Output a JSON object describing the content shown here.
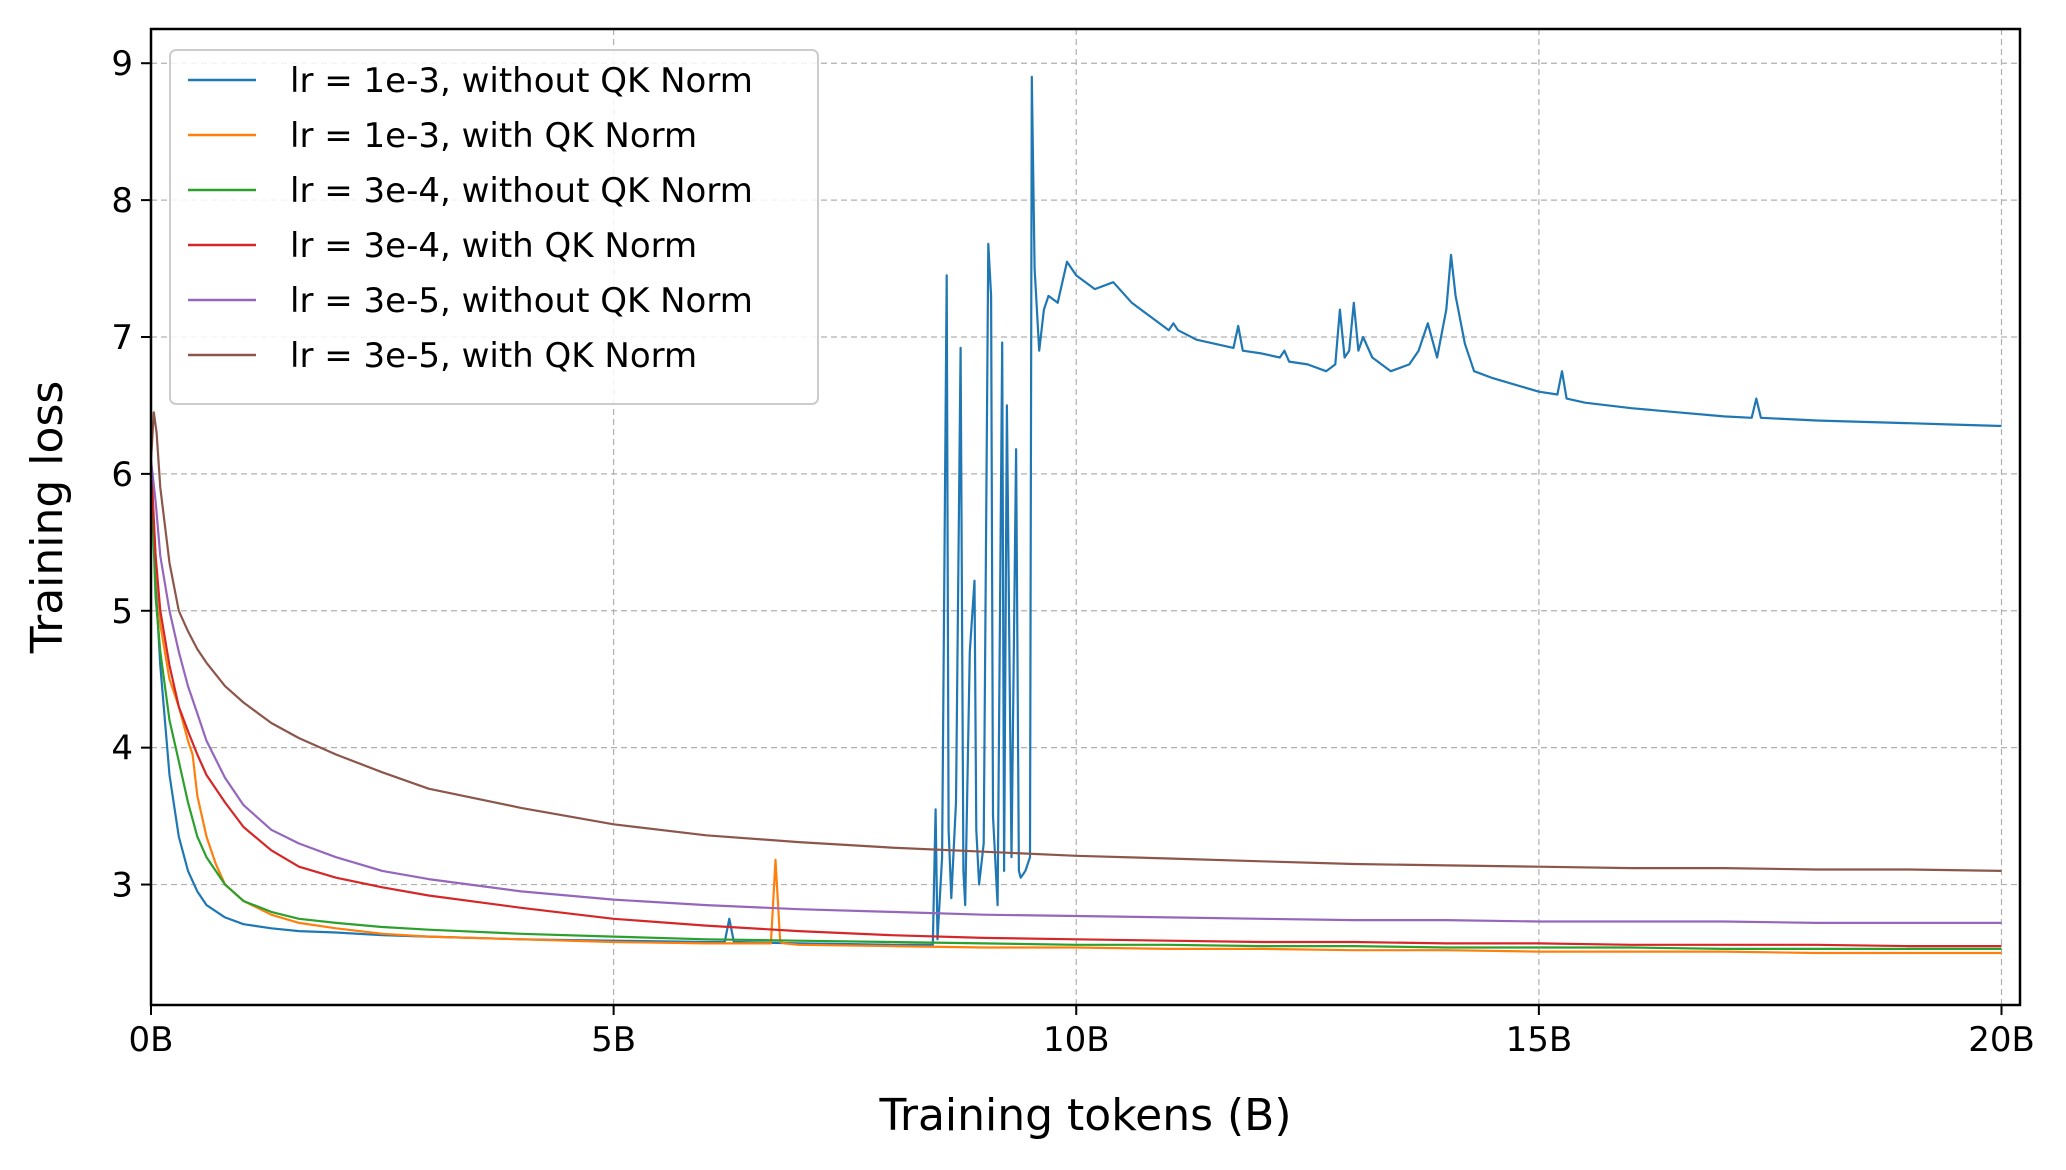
{
  "chart_data": {
    "type": "line",
    "xlabel": "Training tokens (B)",
    "ylabel": "Training loss",
    "xlim": [
      0,
      20.2
    ],
    "ylim": [
      2.12,
      9.25
    ],
    "grid": true,
    "legend_placement": "top-left",
    "x_ticks": [
      {
        "value": 0,
        "label": "0B"
      },
      {
        "value": 5,
        "label": "5B"
      },
      {
        "value": 10,
        "label": "10B"
      },
      {
        "value": 15,
        "label": "15B"
      },
      {
        "value": 20,
        "label": "20B"
      }
    ],
    "y_ticks": [
      {
        "value": 3,
        "label": "3"
      },
      {
        "value": 4,
        "label": "4"
      },
      {
        "value": 5,
        "label": "5"
      },
      {
        "value": 6,
        "label": "6"
      },
      {
        "value": 7,
        "label": "7"
      },
      {
        "value": 8,
        "label": "8"
      },
      {
        "value": 9,
        "label": "9"
      }
    ],
    "series": [
      {
        "name": "lr = 1e-3, without QK Norm",
        "color": "#1f77b4",
        "x": [
          0,
          0.05,
          0.1,
          0.2,
          0.3,
          0.4,
          0.5,
          0.6,
          0.8,
          1.0,
          1.3,
          1.6,
          2.0,
          2.5,
          3.0,
          4.0,
          5.0,
          6.0,
          6.2,
          6.25,
          6.3,
          7.0,
          8.0,
          8.45,
          8.48,
          8.5,
          8.55,
          8.6,
          8.62,
          8.65,
          8.7,
          8.75,
          8.78,
          8.8,
          8.85,
          8.9,
          8.92,
          8.95,
          9.0,
          9.05,
          9.08,
          9.1,
          9.15,
          9.2,
          9.22,
          9.25,
          9.3,
          9.35,
          9.38,
          9.4,
          9.45,
          9.5,
          9.52,
          9.55,
          9.6,
          9.65,
          9.7,
          9.8,
          9.9,
          10.0,
          10.2,
          10.4,
          10.6,
          10.8,
          11.0,
          11.05,
          11.1,
          11.3,
          11.5,
          11.7,
          11.75,
          11.8,
          12.0,
          12.2,
          12.25,
          12.3,
          12.5,
          12.7,
          12.8,
          12.85,
          12.9,
          12.95,
          13.0,
          13.05,
          13.1,
          13.2,
          13.4,
          13.6,
          13.7,
          13.8,
          13.9,
          14.0,
          14.05,
          14.1,
          14.2,
          14.3,
          14.5,
          15.0,
          15.2,
          15.25,
          15.3,
          15.5,
          16.0,
          16.5,
          17.0,
          17.3,
          17.35,
          17.4,
          18.0,
          18.5,
          19.0,
          19.5,
          20.0
        ],
        "y": [
          6.0,
          5.2,
          4.6,
          3.8,
          3.35,
          3.1,
          2.95,
          2.85,
          2.76,
          2.71,
          2.68,
          2.66,
          2.65,
          2.63,
          2.62,
          2.6,
          2.59,
          2.58,
          2.58,
          2.75,
          2.58,
          2.57,
          2.56,
          2.56,
          3.55,
          2.6,
          3.2,
          7.45,
          3.4,
          2.9,
          3.6,
          6.92,
          3.1,
          2.85,
          4.7,
          5.22,
          3.4,
          3.0,
          3.3,
          7.68,
          7.3,
          3.5,
          2.85,
          6.96,
          3.1,
          6.5,
          3.2,
          6.18,
          3.1,
          3.05,
          3.1,
          3.2,
          8.9,
          7.5,
          6.9,
          7.2,
          7.3,
          7.25,
          7.55,
          7.45,
          7.35,
          7.4,
          7.25,
          7.15,
          7.05,
          7.1,
          7.05,
          6.98,
          6.95,
          6.92,
          7.08,
          6.9,
          6.88,
          6.85,
          6.9,
          6.82,
          6.8,
          6.75,
          6.8,
          7.2,
          6.85,
          6.9,
          7.25,
          6.9,
          7.0,
          6.85,
          6.75,
          6.8,
          6.9,
          7.1,
          6.85,
          7.2,
          7.6,
          7.3,
          6.95,
          6.75,
          6.7,
          6.6,
          6.58,
          6.75,
          6.55,
          6.52,
          6.48,
          6.45,
          6.42,
          6.41,
          6.55,
          6.41,
          6.39,
          6.38,
          6.37,
          6.36,
          6.35
        ]
      },
      {
        "name": "lr = 1e-3, with QK Norm",
        "color": "#ff7f0e",
        "x": [
          0,
          0.05,
          0.1,
          0.2,
          0.3,
          0.4,
          0.45,
          0.5,
          0.6,
          0.7,
          0.8,
          1.0,
          1.3,
          1.6,
          2.0,
          2.5,
          3.0,
          4.0,
          5.0,
          6.0,
          6.7,
          6.75,
          6.8,
          6.85,
          7.0,
          8.0,
          9.0,
          10.0,
          11.0,
          12.0,
          13.0,
          14.0,
          15.0,
          16.0,
          17.0,
          18.0,
          19.0,
          20.0
        ],
        "y": [
          6.0,
          5.4,
          4.9,
          4.5,
          4.3,
          4.05,
          3.95,
          3.65,
          3.35,
          3.15,
          3.0,
          2.88,
          2.78,
          2.72,
          2.68,
          2.64,
          2.62,
          2.6,
          2.58,
          2.57,
          2.57,
          3.18,
          2.58,
          2.57,
          2.56,
          2.55,
          2.54,
          2.54,
          2.53,
          2.53,
          2.52,
          2.52,
          2.51,
          2.51,
          2.51,
          2.5,
          2.5,
          2.5
        ]
      },
      {
        "name": "lr = 3e-4, without QK Norm",
        "color": "#2ca02c",
        "x": [
          0,
          0.05,
          0.1,
          0.2,
          0.3,
          0.4,
          0.5,
          0.6,
          0.8,
          1.0,
          1.3,
          1.6,
          2.0,
          2.5,
          3.0,
          4.0,
          5.0,
          6.0,
          7.0,
          8.0,
          9.0,
          10.0,
          11.0,
          12.0,
          13.0,
          14.0,
          15.0,
          16.0,
          17.0,
          18.0,
          19.0,
          20.0
        ],
        "y": [
          6.0,
          5.1,
          4.7,
          4.2,
          3.9,
          3.6,
          3.35,
          3.2,
          3.0,
          2.88,
          2.8,
          2.75,
          2.72,
          2.69,
          2.67,
          2.64,
          2.62,
          2.6,
          2.59,
          2.58,
          2.57,
          2.56,
          2.56,
          2.55,
          2.55,
          2.54,
          2.54,
          2.54,
          2.53,
          2.53,
          2.53,
          2.53
        ]
      },
      {
        "name": "lr = 3e-4, with QK Norm",
        "color": "#d62728",
        "x": [
          0,
          0.05,
          0.1,
          0.2,
          0.3,
          0.4,
          0.5,
          0.6,
          0.8,
          1.0,
          1.3,
          1.6,
          2.0,
          2.5,
          3.0,
          4.0,
          5.0,
          6.0,
          7.0,
          8.0,
          9.0,
          10.0,
          11.0,
          12.0,
          13.0,
          14.0,
          15.0,
          16.0,
          17.0,
          18.0,
          19.0,
          20.0
        ],
        "y": [
          6.1,
          5.4,
          5.0,
          4.6,
          4.3,
          4.12,
          3.95,
          3.8,
          3.6,
          3.42,
          3.25,
          3.13,
          3.05,
          2.98,
          2.92,
          2.83,
          2.75,
          2.7,
          2.66,
          2.63,
          2.61,
          2.6,
          2.59,
          2.58,
          2.58,
          2.57,
          2.57,
          2.56,
          2.56,
          2.56,
          2.55,
          2.55
        ]
      },
      {
        "name": "lr = 3e-5, without QK Norm",
        "color": "#9467bd",
        "x": [
          0,
          0.05,
          0.1,
          0.2,
          0.3,
          0.4,
          0.5,
          0.6,
          0.8,
          1.0,
          1.3,
          1.6,
          2.0,
          2.5,
          3.0,
          4.0,
          5.0,
          6.0,
          7.0,
          8.0,
          9.0,
          10.0,
          11.0,
          12.0,
          13.0,
          14.0,
          15.0,
          16.0,
          17.0,
          18.0,
          19.0,
          20.0
        ],
        "y": [
          6.1,
          5.8,
          5.4,
          5.0,
          4.7,
          4.45,
          4.25,
          4.05,
          3.78,
          3.58,
          3.4,
          3.3,
          3.2,
          3.1,
          3.04,
          2.95,
          2.89,
          2.85,
          2.82,
          2.8,
          2.78,
          2.77,
          2.76,
          2.75,
          2.74,
          2.74,
          2.73,
          2.73,
          2.73,
          2.72,
          2.72,
          2.72
        ]
      },
      {
        "name": "lr = 3e-5, with QK Norm",
        "color": "#8c564b",
        "x": [
          0,
          0.03,
          0.06,
          0.1,
          0.2,
          0.3,
          0.4,
          0.5,
          0.6,
          0.8,
          1.0,
          1.3,
          1.6,
          2.0,
          2.5,
          3.0,
          4.0,
          5.0,
          6.0,
          7.0,
          8.0,
          9.0,
          10.0,
          11.0,
          12.0,
          13.0,
          14.0,
          15.0,
          16.0,
          17.0,
          18.0,
          19.0,
          20.0
        ],
        "y": [
          6.1,
          6.45,
          6.3,
          5.9,
          5.35,
          5.0,
          4.85,
          4.72,
          4.62,
          4.45,
          4.33,
          4.18,
          4.07,
          3.95,
          3.82,
          3.7,
          3.56,
          3.44,
          3.36,
          3.31,
          3.27,
          3.24,
          3.21,
          3.19,
          3.17,
          3.15,
          3.14,
          3.13,
          3.12,
          3.12,
          3.11,
          3.11,
          3.1
        ]
      }
    ]
  }
}
